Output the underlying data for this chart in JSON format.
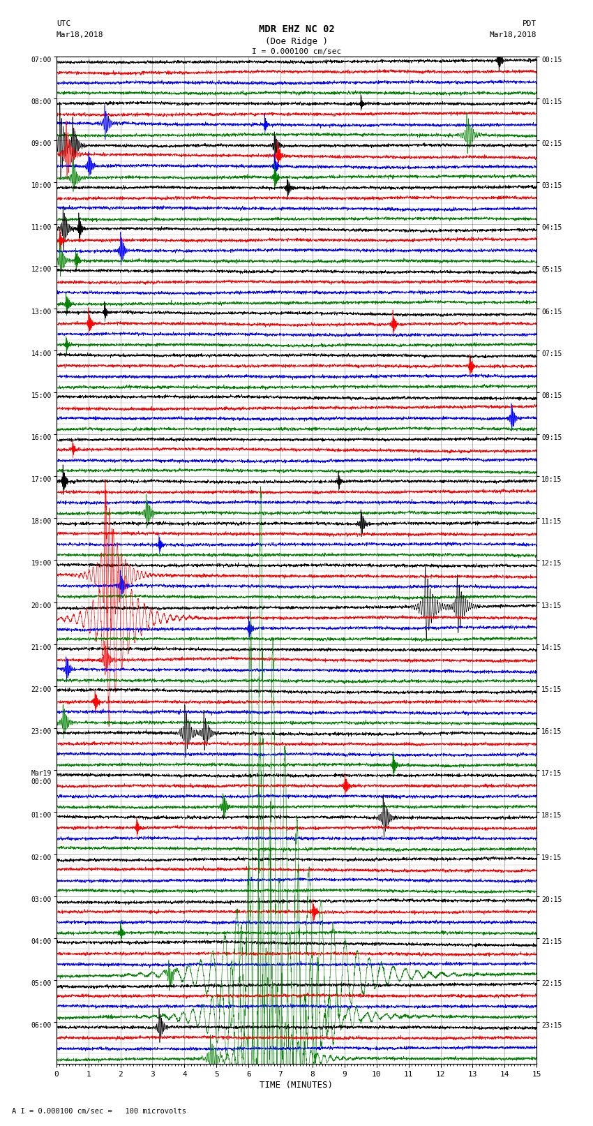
{
  "title_line1": "MDR EHZ NC 02",
  "title_line2": "(Doe Ridge )",
  "scale_label": "I = 0.000100 cm/sec",
  "footer_label": "A I = 0.000100 cm/sec =   100 microvolts",
  "utc_label": "UTC",
  "utc_date": "Mar18,2018",
  "pdt_label": "PDT",
  "pdt_date": "Mar18,2018",
  "xlabel": "TIME (MINUTES)",
  "left_times_utc": [
    "07:00",
    "08:00",
    "09:00",
    "10:00",
    "11:00",
    "12:00",
    "13:00",
    "14:00",
    "15:00",
    "16:00",
    "17:00",
    "18:00",
    "19:00",
    "20:00",
    "21:00",
    "22:00",
    "23:00",
    "Mar19\n00:00",
    "01:00",
    "02:00",
    "03:00",
    "04:00",
    "05:00",
    "06:00"
  ],
  "right_times_pdt": [
    "00:15",
    "01:15",
    "02:15",
    "03:15",
    "04:15",
    "05:15",
    "06:15",
    "07:15",
    "08:15",
    "09:15",
    "10:15",
    "11:15",
    "12:15",
    "13:15",
    "14:15",
    "15:15",
    "16:15",
    "17:15",
    "18:15",
    "19:15",
    "20:15",
    "21:15",
    "22:15",
    "23:15"
  ],
  "n_rows": 24,
  "n_traces_per_row": 4,
  "trace_colors": [
    "black",
    "red",
    "blue",
    "green"
  ],
  "bg_color": "white",
  "grid_color": "#888888",
  "x_min": 0,
  "x_max": 15,
  "x_ticks": [
    0,
    1,
    2,
    3,
    4,
    5,
    6,
    7,
    8,
    9,
    10,
    11,
    12,
    13,
    14,
    15
  ],
  "fig_width": 8.5,
  "fig_height": 16.13,
  "dpi": 100
}
